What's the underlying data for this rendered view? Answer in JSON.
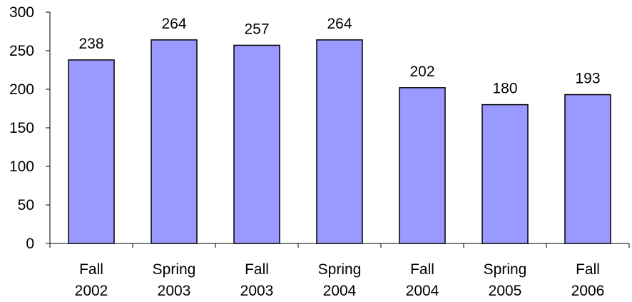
{
  "chart_data": {
    "type": "bar",
    "categories": [
      [
        "Fall",
        "2002"
      ],
      [
        "Spring",
        "2003"
      ],
      [
        "Fall",
        "2003"
      ],
      [
        "Spring",
        "2004"
      ],
      [
        "Fall",
        "2004"
      ],
      [
        "Spring",
        "2005"
      ],
      [
        "Fall",
        "2006"
      ]
    ],
    "values": [
      238,
      264,
      257,
      264,
      202,
      180,
      193
    ],
    "data_labels": [
      "238",
      "264",
      "257",
      "264",
      "202",
      "180",
      "193"
    ],
    "y_ticks": [
      "0",
      "50",
      "100",
      "150",
      "200",
      "250",
      "300"
    ],
    "ylim": [
      0,
      300
    ],
    "title": "",
    "xlabel": "",
    "ylabel": "",
    "grid": false,
    "legend": "none",
    "colors": {
      "bar_fill": "#9999ff",
      "bar_stroke": "#000000",
      "axis": "#000000"
    }
  }
}
